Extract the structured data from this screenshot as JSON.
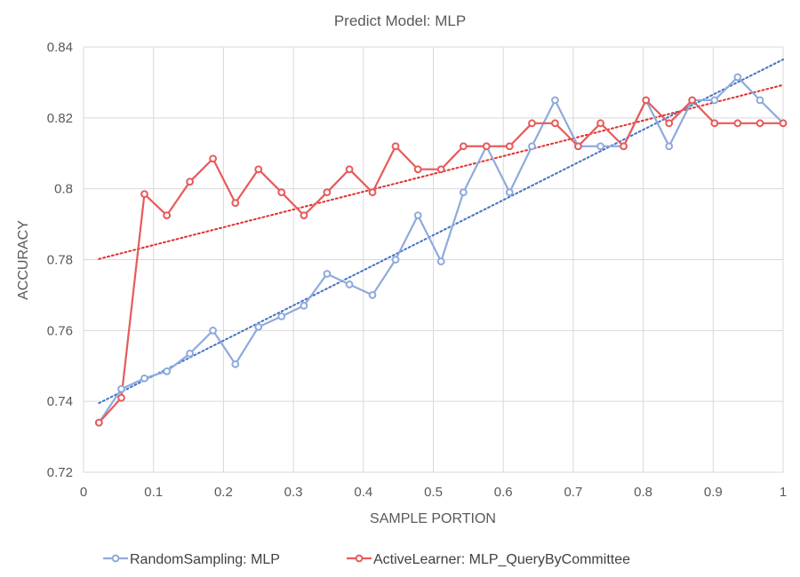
{
  "chart_data": {
    "type": "line",
    "title": "Predict Model: MLP",
    "xlabel": "SAMPLE PORTION",
    "ylabel": "ACCURACY",
    "xlim": [
      0,
      1
    ],
    "ylim": [
      0.72,
      0.84
    ],
    "xticks": [
      0,
      0.1,
      0.2,
      0.3,
      0.4,
      0.5,
      0.6,
      0.7,
      0.8,
      0.9,
      1
    ],
    "xtick_labels": [
      "0",
      "0.1",
      "0.2",
      "0.3",
      "0.4",
      "0.5",
      "0.6",
      "0.7",
      "0.8",
      "0.9",
      "1"
    ],
    "yticks": [
      0.72,
      0.74,
      0.76,
      0.78,
      0.8,
      0.82,
      0.84
    ],
    "ytick_labels": [
      "0.72",
      "0.74",
      "0.76",
      "0.78",
      "0.8",
      "0.82",
      "0.84"
    ],
    "grid": true,
    "legend_position": "bottom",
    "x": [
      0.022,
      0.054,
      0.087,
      0.119,
      0.152,
      0.185,
      0.217,
      0.25,
      0.283,
      0.315,
      0.348,
      0.38,
      0.413,
      0.446,
      0.478,
      0.511,
      0.543,
      0.576,
      0.609,
      0.641,
      0.674,
      0.707,
      0.739,
      0.772,
      0.804,
      0.837,
      0.87,
      0.902,
      0.935,
      0.967,
      1.0
    ],
    "series": [
      {
        "name": "RandomSampling: MLP",
        "color": "#8faadc",
        "values": [
          0.734,
          0.7435,
          0.7465,
          0.7485,
          0.7535,
          0.76,
          0.7505,
          0.761,
          0.764,
          0.767,
          0.776,
          0.773,
          0.77,
          0.78,
          0.7925,
          0.7795,
          0.799,
          0.812,
          0.799,
          0.812,
          0.825,
          0.812,
          0.812,
          0.812,
          0.825,
          0.812,
          0.825,
          0.825,
          0.8315,
          0.825,
          0.8185
        ],
        "trendline": [
          0.7395,
          0.8365
        ],
        "trendline_color": "#4472c4"
      },
      {
        "name": "ActiveLearner: MLP_QueryByCommittee",
        "color": "#e85a5a",
        "values": [
          0.734,
          0.741,
          0.7985,
          0.7925,
          0.802,
          0.8085,
          0.796,
          0.8055,
          0.799,
          0.7925,
          0.799,
          0.8055,
          0.799,
          0.812,
          0.8055,
          0.8055,
          0.812,
          0.812,
          0.812,
          0.8185,
          0.8185,
          0.812,
          0.8185,
          0.812,
          0.825,
          0.8185,
          0.825,
          0.8185,
          0.8185,
          0.8185,
          0.8185
        ],
        "trendline": [
          0.7802,
          0.8293
        ],
        "trendline_color": "#e03030"
      }
    ]
  }
}
